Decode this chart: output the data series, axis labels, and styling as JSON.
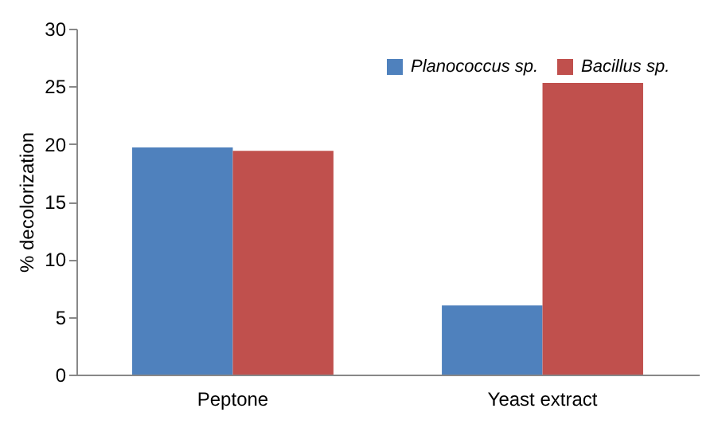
{
  "chart_data": {
    "type": "bar",
    "ylabel": "% decolorization",
    "categories": [
      "Peptone",
      "Yeast extract"
    ],
    "series": [
      {
        "name": "Planococcus sp.",
        "color": "#4f81bd",
        "values": [
          19.7,
          6.0
        ]
      },
      {
        "name": "Bacillus sp.",
        "color": "#c0504d",
        "values": [
          19.4,
          25.3
        ]
      }
    ],
    "ylim": [
      0,
      30
    ],
    "yticks": [
      0,
      5,
      10,
      15,
      20,
      25,
      30
    ],
    "grid": false,
    "legend": "top right"
  }
}
